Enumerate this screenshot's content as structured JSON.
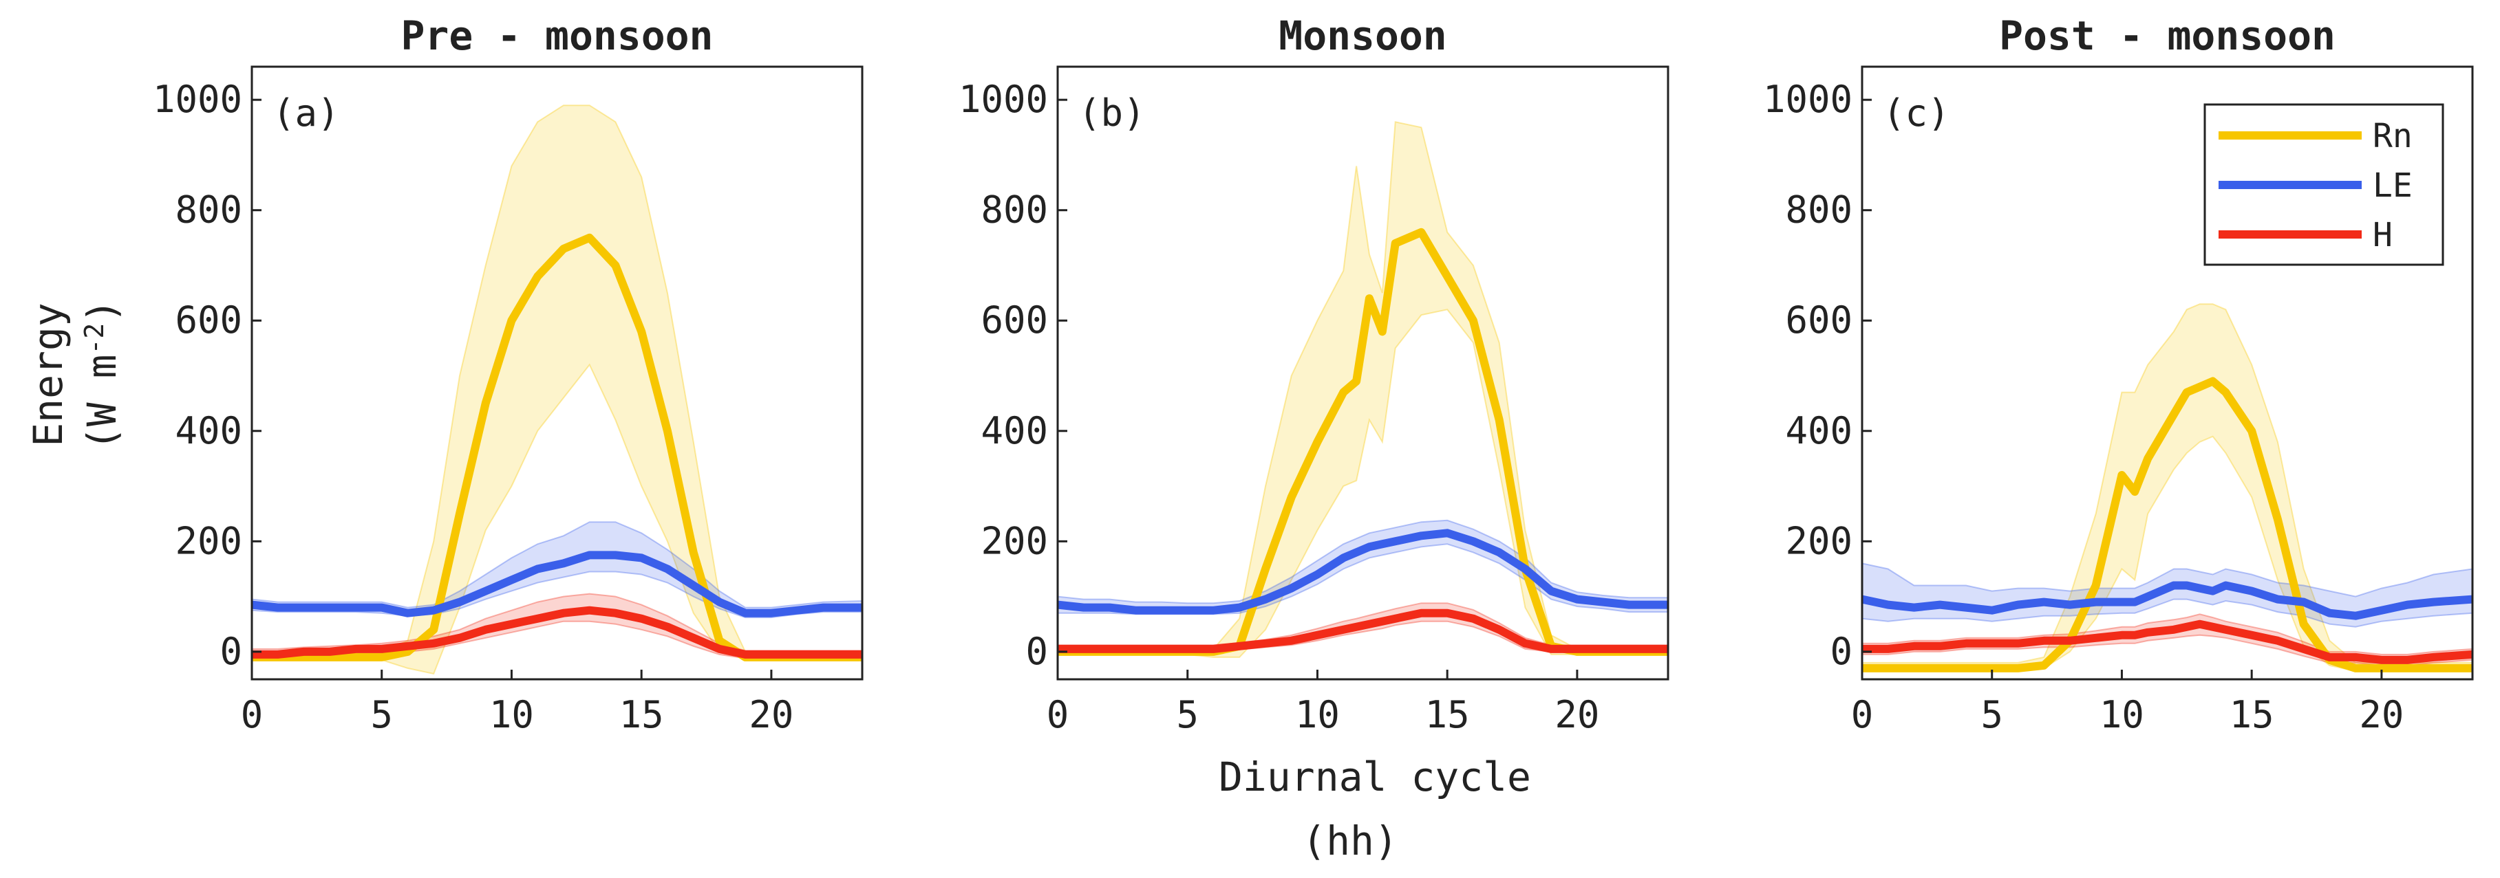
{
  "figure": {
    "y_axis_title": "Energy",
    "y_axis_units": "(W m",
    "y_axis_units_exp": "-2",
    "y_axis_units_close": ")",
    "x_axis_title": "Diurnal cycle",
    "x_axis_units": "(hh)"
  },
  "colors": {
    "Rn": "#F7C600",
    "LE": "#3A5FEA",
    "H": "#F22B18",
    "frame": "#222222"
  },
  "legend": [
    {
      "key": "Rn",
      "label": "Rn"
    },
    {
      "key": "LE",
      "label": "LE"
    },
    {
      "key": "H",
      "label": "H"
    }
  ],
  "chart_data": [
    {
      "type": "line",
      "title": "Pre - monsoon",
      "panel_label": "(a)",
      "xlim": [
        0,
        23.5
      ],
      "ylim": [
        -50,
        1060
      ],
      "xticks": [
        0,
        5,
        10,
        15,
        20
      ],
      "yticks": [
        0,
        200,
        400,
        600,
        800,
        1000
      ],
      "xlabel": "",
      "ylabel": "Energy (W m-2)",
      "x": [
        0,
        1,
        2,
        3,
        4,
        5,
        6,
        7,
        8,
        9,
        10,
        11,
        12,
        13,
        14,
        15,
        16,
        17,
        18,
        19,
        20,
        21,
        22,
        23.5
      ],
      "series": [
        {
          "name": "Rn",
          "values": [
            -10,
            -10,
            -10,
            -10,
            -10,
            -10,
            0,
            40,
            250,
            450,
            600,
            680,
            730,
            750,
            700,
            580,
            400,
            180,
            20,
            -10,
            -10,
            -10,
            -10,
            -10
          ],
          "lower": [
            -12,
            -12,
            -12,
            -12,
            -12,
            -15,
            -30,
            -40,
            80,
            220,
            300,
            400,
            460,
            520,
            420,
            300,
            200,
            70,
            0,
            -12,
            -12,
            -12,
            -12,
            -12
          ],
          "upper": [
            0,
            0,
            0,
            0,
            0,
            0,
            20,
            200,
            500,
            700,
            880,
            960,
            990,
            990,
            960,
            860,
            650,
            380,
            100,
            0,
            0,
            0,
            0,
            0
          ]
        },
        {
          "name": "LE",
          "values": [
            85,
            80,
            80,
            80,
            80,
            80,
            70,
            75,
            90,
            110,
            130,
            150,
            160,
            175,
            175,
            170,
            150,
            120,
            90,
            70,
            70,
            75,
            80,
            80
          ],
          "lower": [
            75,
            72,
            72,
            72,
            72,
            70,
            65,
            68,
            78,
            95,
            110,
            125,
            135,
            145,
            145,
            140,
            125,
            100,
            78,
            62,
            62,
            68,
            72,
            72
          ],
          "upper": [
            95,
            90,
            90,
            90,
            90,
            90,
            80,
            85,
            110,
            140,
            170,
            195,
            210,
            235,
            235,
            215,
            185,
            150,
            110,
            80,
            80,
            85,
            90,
            92
          ]
        },
        {
          "name": "H",
          "values": [
            -5,
            -5,
            0,
            0,
            5,
            5,
            10,
            15,
            25,
            40,
            50,
            60,
            70,
            75,
            70,
            60,
            45,
            25,
            5,
            -5,
            -5,
            -5,
            -5,
            -5
          ],
          "lower": [
            -15,
            -15,
            -10,
            -8,
            -5,
            -5,
            0,
            5,
            15,
            25,
            35,
            45,
            55,
            55,
            50,
            40,
            28,
            10,
            -5,
            -12,
            -12,
            -12,
            -12,
            -12
          ],
          "upper": [
            5,
            5,
            8,
            10,
            12,
            15,
            20,
            28,
            40,
            60,
            75,
            90,
            100,
            105,
            100,
            85,
            65,
            40,
            15,
            2,
            2,
            2,
            2,
            2
          ]
        }
      ]
    },
    {
      "type": "line",
      "title": "Monsoon",
      "panel_label": "(b)",
      "xlim": [
        0,
        23.5
      ],
      "ylim": [
        -50,
        1060
      ],
      "xticks": [
        0,
        5,
        10,
        15,
        20
      ],
      "yticks": [
        0,
        200,
        400,
        600,
        800,
        1000
      ],
      "xlabel": "",
      "ylabel": "",
      "x": [
        0,
        1,
        2,
        3,
        4,
        5,
        6,
        7,
        8,
        9,
        10,
        11,
        11.5,
        12,
        12.5,
        13,
        14,
        15,
        16,
        17,
        18,
        19,
        20,
        21,
        22,
        23.5
      ],
      "series": [
        {
          "name": "Rn",
          "values": [
            0,
            0,
            0,
            0,
            0,
            0,
            0,
            10,
            150,
            280,
            380,
            470,
            490,
            640,
            580,
            740,
            760,
            680,
            600,
            420,
            150,
            10,
            0,
            0,
            0,
            0
          ],
          "lower": [
            -5,
            -5,
            -5,
            -5,
            -5,
            -5,
            -10,
            -10,
            40,
            130,
            220,
            300,
            310,
            420,
            380,
            550,
            610,
            620,
            560,
            330,
            80,
            -5,
            -5,
            -5,
            -5,
            -5
          ],
          "upper": [
            5,
            5,
            5,
            5,
            5,
            5,
            5,
            60,
            300,
            500,
            600,
            690,
            880,
            720,
            650,
            960,
            950,
            760,
            700,
            560,
            220,
            30,
            5,
            5,
            5,
            5
          ]
        },
        {
          "name": "LE",
          "values": [
            85,
            80,
            80,
            75,
            75,
            75,
            75,
            80,
            95,
            115,
            140,
            170,
            180,
            190,
            195,
            200,
            210,
            215,
            200,
            180,
            150,
            110,
            95,
            90,
            85,
            85
          ],
          "lower": [
            70,
            70,
            70,
            68,
            68,
            68,
            68,
            70,
            82,
            100,
            122,
            150,
            160,
            170,
            175,
            180,
            190,
            195,
            180,
            160,
            130,
            95,
            82,
            78,
            72,
            72
          ],
          "upper": [
            100,
            95,
            95,
            90,
            90,
            88,
            88,
            92,
            110,
            135,
            165,
            195,
            205,
            215,
            220,
            225,
            235,
            238,
            222,
            200,
            170,
            125,
            108,
            102,
            98,
            98
          ]
        },
        {
          "name": "H",
          "values": [
            5,
            5,
            5,
            5,
            5,
            5,
            5,
            10,
            15,
            20,
            30,
            40,
            45,
            50,
            55,
            60,
            70,
            70,
            60,
            40,
            15,
            5,
            5,
            5,
            5,
            5
          ],
          "lower": [
            0,
            0,
            0,
            0,
            0,
            0,
            0,
            4,
            8,
            12,
            20,
            30,
            34,
            38,
            42,
            48,
            55,
            55,
            45,
            28,
            5,
            0,
            0,
            0,
            0,
            0
          ],
          "upper": [
            12,
            12,
            12,
            12,
            12,
            12,
            12,
            16,
            22,
            30,
            42,
            55,
            60,
            66,
            72,
            78,
            88,
            88,
            76,
            52,
            25,
            12,
            12,
            12,
            12,
            12
          ]
        }
      ]
    },
    {
      "type": "line",
      "title": "Post - monsoon",
      "panel_label": "(c)",
      "xlim": [
        0,
        23.5
      ],
      "ylim": [
        -50,
        1060
      ],
      "xticks": [
        0,
        5,
        10,
        15,
        20
      ],
      "yticks": [
        0,
        200,
        400,
        600,
        800,
        1000
      ],
      "xlabel": "",
      "ylabel": "",
      "x": [
        0,
        1,
        2,
        3,
        4,
        5,
        6,
        7,
        8,
        9,
        10,
        10.5,
        11,
        12,
        12.5,
        13,
        13.5,
        14,
        15,
        16,
        17,
        18,
        19,
        20,
        21,
        22,
        23.5
      ],
      "series": [
        {
          "name": "Rn",
          "values": [
            -30,
            -30,
            -30,
            -30,
            -30,
            -30,
            -30,
            -25,
            20,
            120,
            320,
            290,
            350,
            430,
            470,
            480,
            490,
            470,
            400,
            240,
            50,
            -15,
            -30,
            -30,
            -30,
            -30,
            -30
          ],
          "lower": [
            -35,
            -35,
            -35,
            -35,
            -35,
            -35,
            -35,
            -30,
            0,
            60,
            150,
            130,
            250,
            330,
            360,
            380,
            390,
            360,
            280,
            130,
            10,
            -25,
            -35,
            -35,
            -35,
            -35,
            -35
          ],
          "upper": [
            -20,
            -20,
            -20,
            -20,
            -20,
            -20,
            -20,
            -10,
            100,
            250,
            470,
            470,
            520,
            580,
            620,
            630,
            630,
            620,
            520,
            380,
            150,
            20,
            -20,
            -20,
            -20,
            -20,
            -20
          ]
        },
        {
          "name": "LE",
          "values": [
            95,
            85,
            80,
            85,
            80,
            75,
            85,
            90,
            85,
            90,
            90,
            90,
            100,
            120,
            120,
            115,
            110,
            120,
            110,
            95,
            90,
            70,
            65,
            75,
            85,
            90,
            95
          ],
          "lower": [
            60,
            55,
            60,
            60,
            60,
            55,
            60,
            65,
            65,
            68,
            70,
            70,
            78,
            95,
            95,
            90,
            85,
            92,
            85,
            72,
            65,
            50,
            45,
            55,
            60,
            65,
            70
          ],
          "upper": [
            160,
            150,
            120,
            120,
            120,
            110,
            115,
            115,
            110,
            115,
            115,
            115,
            125,
            150,
            150,
            145,
            140,
            150,
            140,
            125,
            120,
            110,
            100,
            115,
            125,
            140,
            150
          ]
        },
        {
          "name": "H",
          "values": [
            5,
            5,
            10,
            10,
            15,
            15,
            15,
            20,
            20,
            25,
            30,
            30,
            35,
            40,
            45,
            50,
            45,
            40,
            30,
            20,
            5,
            -10,
            -10,
            -15,
            -15,
            -10,
            -5
          ],
          "lower": [
            -5,
            -5,
            0,
            0,
            5,
            5,
            5,
            8,
            8,
            12,
            15,
            15,
            20,
            25,
            28,
            30,
            28,
            25,
            15,
            5,
            -8,
            -20,
            -20,
            -25,
            -25,
            -20,
            -15
          ],
          "upper": [
            15,
            15,
            20,
            20,
            25,
            25,
            25,
            30,
            32,
            38,
            45,
            45,
            52,
            58,
            62,
            68,
            62,
            55,
            45,
            35,
            18,
            0,
            0,
            -5,
            -5,
            0,
            5
          ]
        }
      ]
    }
  ]
}
